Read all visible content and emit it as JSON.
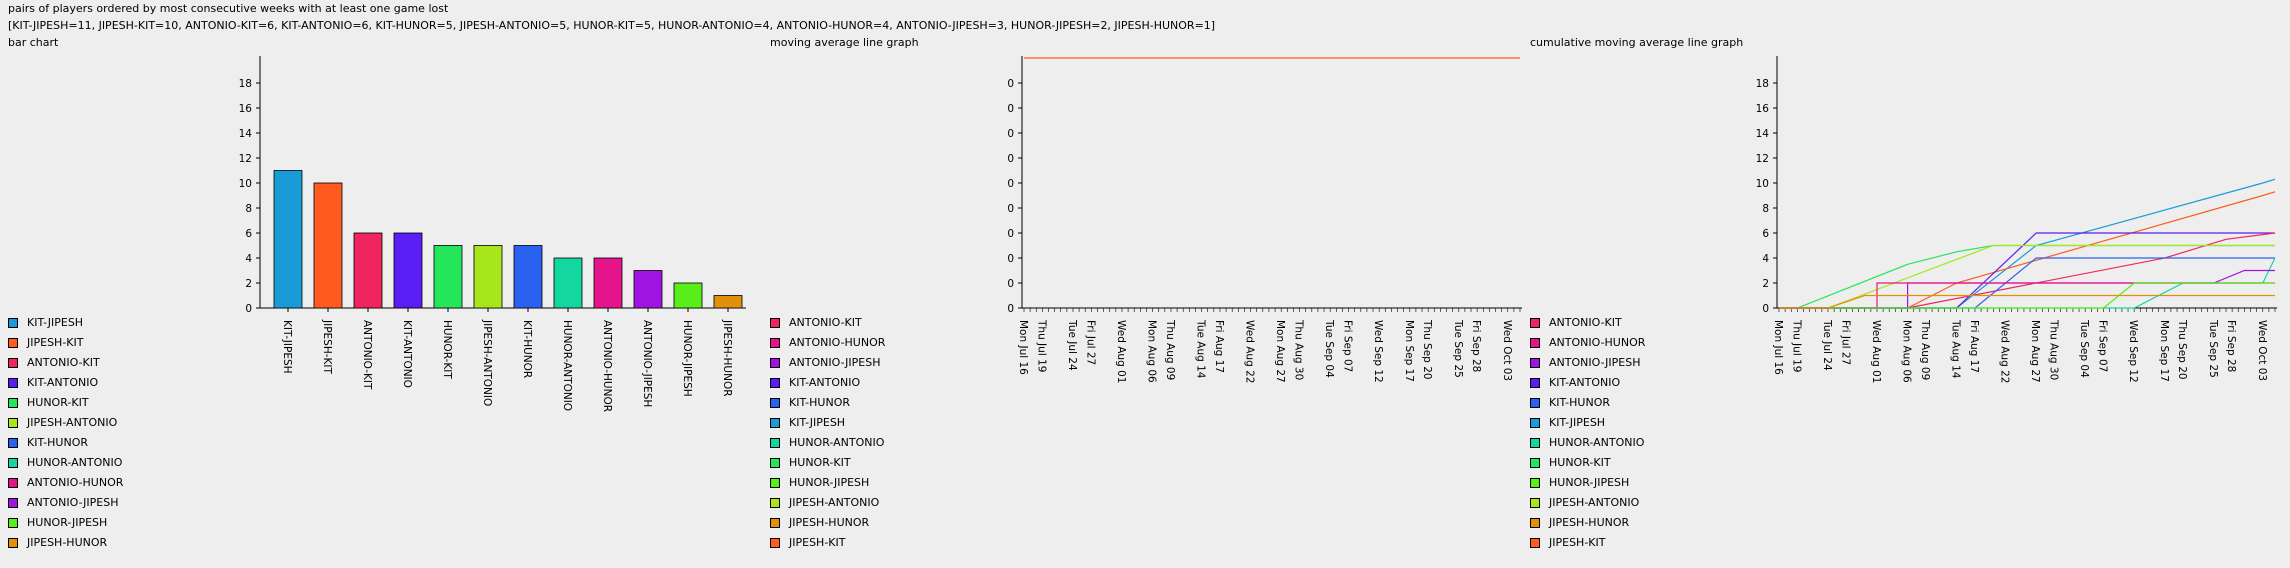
{
  "header": {
    "title": "pairs of players ordered by most consecutive weeks with at least one game lost",
    "summary": "[KIT-JIPESH=11, JIPESH-KIT=10, ANTONIO-KIT=6, KIT-ANTONIO=6, KIT-HUNOR=5, JIPESH-ANTONIO=5, HUNOR-KIT=5, HUNOR-ANTONIO=4, ANTONIO-HUNOR=4, ANTONIO-JIPESH=3, HUNOR-JIPESH=2, JIPESH-HUNOR=1]"
  },
  "colors": {
    "KIT-JIPESH": "#1a9bd6",
    "JIPESH-KIT": "#ff5a1f",
    "ANTONIO-KIT": "#f0245e",
    "KIT-ANTONIO": "#5a1ef5",
    "HUNOR-KIT": "#24e65a",
    "JIPESH-ANTONIO": "#a6e61a",
    "KIT-HUNOR": "#2a62f0",
    "HUNOR-ANTONIO": "#14d6a0",
    "ANTONIO-HUNOR": "#e6148a",
    "ANTONIO-JIPESH": "#a014e0",
    "HUNOR-JIPESH": "#58ee1a",
    "JIPESH-HUNOR": "#e0900a"
  },
  "legends": {
    "bar": [
      "KIT-JIPESH",
      "JIPESH-KIT",
      "ANTONIO-KIT",
      "KIT-ANTONIO",
      "HUNOR-KIT",
      "JIPESH-ANTONIO",
      "KIT-HUNOR",
      "HUNOR-ANTONIO",
      "ANTONIO-HUNOR",
      "ANTONIO-JIPESH",
      "HUNOR-JIPESH",
      "JIPESH-HUNOR"
    ],
    "line": [
      "ANTONIO-KIT",
      "ANTONIO-HUNOR",
      "ANTONIO-JIPESH",
      "KIT-ANTONIO",
      "KIT-HUNOR",
      "KIT-JIPESH",
      "HUNOR-ANTONIO",
      "HUNOR-KIT",
      "HUNOR-JIPESH",
      "JIPESH-ANTONIO",
      "JIPESH-HUNOR",
      "JIPESH-KIT"
    ]
  },
  "chart_data": [
    {
      "type": "bar",
      "title": "bar chart",
      "categories": [
        "KIT-JIPESH",
        "JIPESH-KIT",
        "ANTONIO-KIT",
        "KIT-ANTONIO",
        "HUNOR-KIT",
        "JIPESH-ANTONIO",
        "KIT-HUNOR",
        "HUNOR-ANTONIO",
        "ANTONIO-HUNOR",
        "ANTONIO-JIPESH",
        "HUNOR-JIPESH",
        "JIPESH-HUNOR"
      ],
      "values": [
        11,
        10,
        6,
        6,
        5,
        5,
        5,
        4,
        4,
        3,
        2,
        1
      ],
      "ylim": [
        0,
        20
      ],
      "yticks": [
        0,
        2,
        4,
        6,
        8,
        10,
        12,
        14,
        16,
        18
      ],
      "grid": false,
      "legend": "left"
    },
    {
      "type": "line",
      "title": "moving average line graph",
      "x_dates": [
        "2018-07-16",
        "2018-07-19",
        "2018-07-24",
        "2018-07-27",
        "2018-08-01",
        "2018-08-06",
        "2018-08-09",
        "2018-08-14",
        "2018-08-17",
        "2018-08-22",
        "2018-08-27",
        "2018-08-30",
        "2018-09-04",
        "2018-09-07",
        "2018-09-12",
        "2018-09-17",
        "2018-09-20",
        "2018-09-25",
        "2018-09-28",
        "2018-10-03"
      ],
      "x_tick_labels": [
        "Mon Jul 16",
        "Thu Jul 19",
        "Tue Jul 24",
        "Fri Jul 27",
        "Wed Aug 01",
        "Mon Aug 06",
        "Thu Aug 09",
        "Tue Aug 14",
        "Fri Aug 17",
        "Wed Aug 22",
        "Mon Aug 27",
        "Thu Aug 30",
        "Tue Sep 04",
        "Fri Sep 07",
        "Wed Sep 12",
        "Mon Sep 17",
        "Thu Sep 20",
        "Tue Sep 25",
        "Fri Sep 28",
        "Wed Oct 03"
      ],
      "yticks": [
        "0",
        "0",
        "0",
        "0",
        "0",
        "0",
        "0",
        "0",
        "0",
        "0"
      ],
      "series": [
        {
          "name": "JIPESH-KIT",
          "x": [
            "2018-07-16",
            "2018-10-05"
          ],
          "y": [
            1,
            1
          ]
        }
      ],
      "grid": false,
      "legend": "left"
    },
    {
      "type": "line",
      "title": "cumulative moving average line graph",
      "x_tick_labels": [
        "Mon Jul 16",
        "Thu Jul 19",
        "Tue Jul 24",
        "Fri Jul 27",
        "Wed Aug 01",
        "Mon Aug 06",
        "Thu Aug 09",
        "Tue Aug 14",
        "Fri Aug 17",
        "Wed Aug 22",
        "Mon Aug 27",
        "Thu Aug 30",
        "Tue Sep 04",
        "Fri Sep 07",
        "Wed Sep 12",
        "Mon Sep 17",
        "Thu Sep 20",
        "Tue Sep 25",
        "Fri Sep 28",
        "Wed Oct 03"
      ],
      "ylim": [
        0,
        20
      ],
      "yticks": [
        0,
        2,
        4,
        6,
        8,
        10,
        12,
        14,
        16,
        18
      ],
      "series": [
        {
          "name": "HUNOR-KIT",
          "x": [
            "2018-07-16",
            "2018-07-19",
            "2018-08-06",
            "2018-08-14",
            "2018-08-20",
            "2018-10-05"
          ],
          "y": [
            0,
            0,
            3.5,
            4.5,
            5,
            5
          ]
        },
        {
          "name": "KIT-JIPESH",
          "x": [
            "2018-07-16",
            "2018-08-14",
            "2018-08-27",
            "2018-10-03",
            "2018-10-05"
          ],
          "y": [
            0,
            0,
            5,
            10,
            10.3
          ]
        },
        {
          "name": "JIPESH-KIT",
          "x": [
            "2018-07-16",
            "2018-08-06",
            "2018-08-14",
            "2018-10-03",
            "2018-10-05"
          ],
          "y": [
            0,
            0,
            2,
            9,
            9.3
          ]
        },
        {
          "name": "KIT-ANTONIO",
          "x": [
            "2018-07-16",
            "2018-08-14",
            "2018-08-27",
            "2018-10-05"
          ],
          "y": [
            0,
            0,
            6,
            6
          ]
        },
        {
          "name": "ANTONIO-KIT",
          "x": [
            "2018-07-16",
            "2018-08-06",
            "2018-09-17",
            "2018-09-27",
            "2018-10-05"
          ],
          "y": [
            0,
            0,
            4,
            5.5,
            6
          ]
        },
        {
          "name": "JIPESH-ANTONIO",
          "x": [
            "2018-07-16",
            "2018-07-24",
            "2018-08-20",
            "2018-10-05"
          ],
          "y": [
            0,
            0,
            5,
            5
          ]
        },
        {
          "name": "KIT-HUNOR",
          "x": [
            "2018-07-16",
            "2018-08-17",
            "2018-08-27",
            "2018-09-20",
            "2018-10-05"
          ],
          "y": [
            0,
            0,
            4,
            4,
            4
          ]
        },
        {
          "name": "HUNOR-ANTONIO",
          "x": [
            "2018-07-16",
            "2018-09-12",
            "2018-09-20",
            "2018-10-03",
            "2018-10-05"
          ],
          "y": [
            0,
            0,
            2,
            2,
            4
          ]
        },
        {
          "name": "ANTONIO-JIPESH",
          "x": [
            "2018-07-16",
            "2018-08-06",
            "2018-08-06",
            "2018-09-25",
            "2018-09-30",
            "2018-10-05"
          ],
          "y": [
            0,
            0,
            2,
            2,
            3,
            3
          ]
        },
        {
          "name": "ANTONIO-HUNOR",
          "x": [
            "2018-07-16",
            "2018-08-01",
            "2018-08-01",
            "2018-10-05"
          ],
          "y": [
            0,
            0,
            2,
            2
          ]
        },
        {
          "name": "HUNOR-JIPESH",
          "x": [
            "2018-07-16",
            "2018-09-07",
            "2018-09-12",
            "2018-10-05"
          ],
          "y": [
            0,
            0,
            2,
            2
          ]
        },
        {
          "name": "JIPESH-HUNOR",
          "x": [
            "2018-07-16",
            "2018-07-24",
            "2018-07-30",
            "2018-10-05"
          ],
          "y": [
            0,
            0,
            1,
            1
          ]
        }
      ],
      "grid": false,
      "legend": "left"
    }
  ]
}
